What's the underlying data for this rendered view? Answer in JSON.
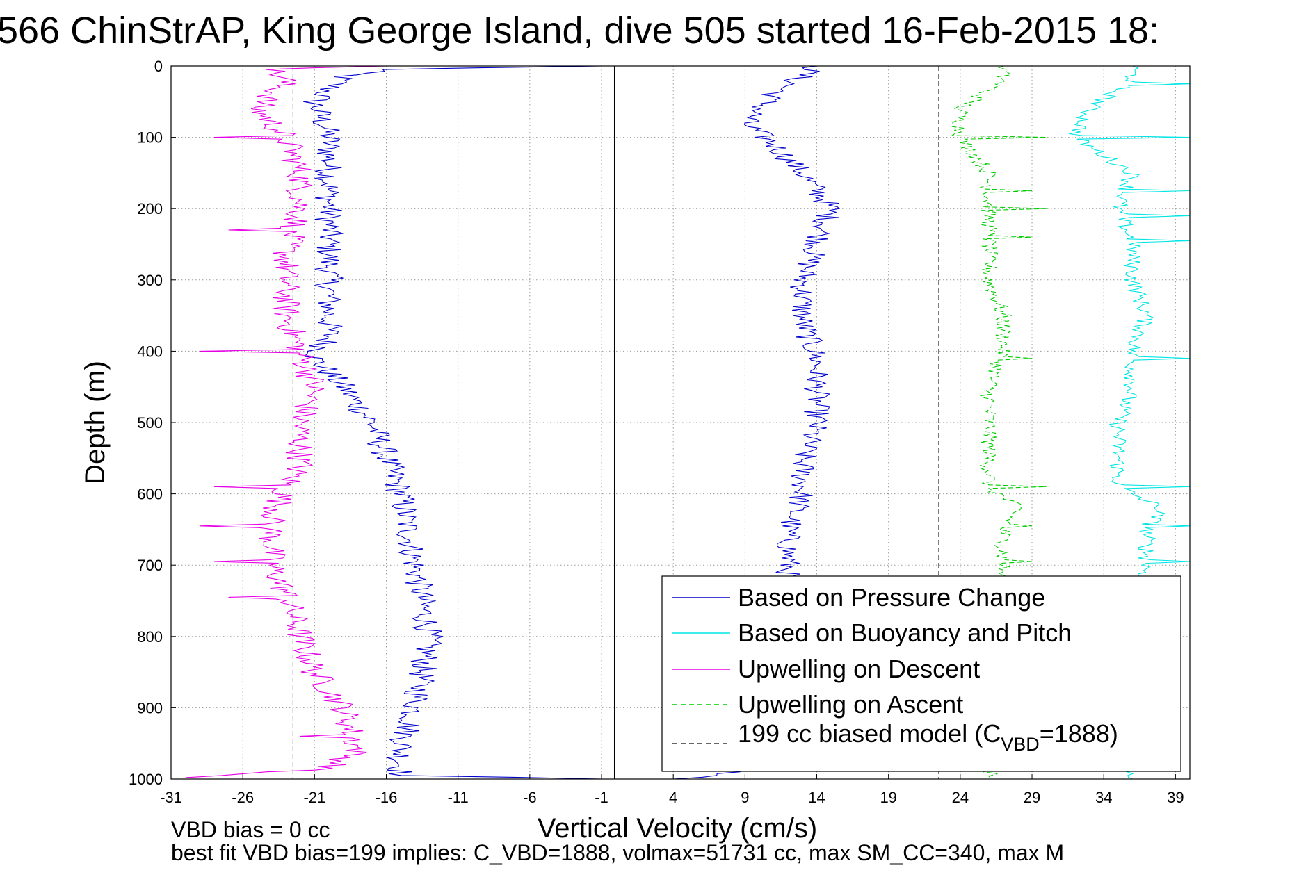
{
  "chart_data": {
    "type": "line",
    "title": "566 ChinStrAP, King George Island, dive 505 started 16-Feb-2015 18:",
    "xlabel": "Vertical Velocity (cm/s)",
    "ylabel": "Depth (m)",
    "xlim": [
      -31,
      40
    ],
    "ylim": [
      0,
      1000
    ],
    "y_reversed": true,
    "grid": true,
    "x_ticks": [
      "-31",
      "-26",
      "-21",
      "-16",
      "-11",
      "-6",
      "-1",
      "4",
      "9",
      "14",
      "19",
      "24",
      "29",
      "34",
      "39"
    ],
    "y_ticks": [
      "0",
      "100",
      "200",
      "300",
      "400",
      "500",
      "600",
      "700",
      "800",
      "900",
      "1000"
    ],
    "legend_position": "bottom-right",
    "legend": [
      {
        "label": "Based on Pressure Change",
        "color": "#0000cc",
        "style": "solid"
      },
      {
        "label": "Based on Buoyancy and Pitch",
        "color": "#00e5e5",
        "style": "solid"
      },
      {
        "label": "Upwelling on Descent",
        "color": "#e600e6",
        "style": "solid"
      },
      {
        "label": "Upwelling on Ascent",
        "color": "#00cc00",
        "style": "dashed"
      },
      {
        "label_main": "199 cc biased model (C",
        "label_sub": "VBD",
        "label_tail": "=1888)",
        "color": "#333333",
        "style": "dashed"
      }
    ],
    "series": [
      {
        "name": "Based on Pressure Change (descent)",
        "color": "#0000cc",
        "style": "solid",
        "points": [
          [
            -1,
            0
          ],
          [
            -2,
            2
          ],
          [
            -16,
            3
          ],
          [
            -19,
            15
          ],
          [
            -21,
            50
          ],
          [
            -20,
            100
          ],
          [
            -20,
            200
          ],
          [
            -20,
            300
          ],
          [
            -20,
            380
          ],
          [
            -21,
            410
          ],
          [
            -19,
            450
          ],
          [
            -17,
            500
          ],
          [
            -15,
            600
          ],
          [
            -14,
            700
          ],
          [
            -13,
            800
          ],
          [
            -14,
            900
          ],
          [
            -15,
            960
          ],
          [
            -15,
            995
          ],
          [
            -1,
            1000
          ]
        ],
        "noise": 1.0
      },
      {
        "name": "Based on Pressure Change (ascent)",
        "color": "#0000cc",
        "style": "solid",
        "points": [
          [
            14,
            0
          ],
          [
            11,
            40
          ],
          [
            9,
            80
          ],
          [
            11,
            110
          ],
          [
            13,
            150
          ],
          [
            15,
            200
          ],
          [
            14,
            250
          ],
          [
            13,
            300
          ],
          [
            13,
            360
          ],
          [
            14,
            410
          ],
          [
            14,
            450
          ],
          [
            14,
            500
          ],
          [
            13,
            550
          ],
          [
            13,
            600
          ],
          [
            12,
            650
          ],
          [
            12,
            700
          ],
          [
            12,
            800
          ],
          [
            12,
            900
          ],
          [
            12,
            960
          ],
          [
            9,
            990
          ],
          [
            4,
            1000
          ]
        ],
        "noise": 0.9
      },
      {
        "name": "Upwelling on Descent",
        "color": "#e600e6",
        "style": "solid",
        "points": [
          [
            -16,
            0
          ],
          [
            -24,
            5
          ],
          [
            -23,
            20
          ],
          [
            -25,
            60
          ],
          [
            -23,
            100
          ],
          [
            -22,
            150
          ],
          [
            -22,
            200
          ],
          [
            -23,
            260
          ],
          [
            -23,
            300
          ],
          [
            -23,
            350
          ],
          [
            -22,
            400
          ],
          [
            -21,
            450
          ],
          [
            -22,
            500
          ],
          [
            -22,
            560
          ],
          [
            -23,
            590
          ],
          [
            -24,
            640
          ],
          [
            -24,
            700
          ],
          [
            -23,
            740
          ],
          [
            -22,
            800
          ],
          [
            -21,
            850
          ],
          [
            -19,
            900
          ],
          [
            -18,
            960
          ],
          [
            -20,
            985
          ],
          [
            -30,
            998
          ]
        ],
        "noise": 1.0,
        "spikes": [
          [
            -28,
            100
          ],
          [
            -27,
            230
          ],
          [
            -29,
            400
          ],
          [
            -28,
            590
          ],
          [
            -29,
            645
          ],
          [
            -28,
            695
          ],
          [
            -27,
            745
          ],
          [
            -22,
            940
          ]
        ]
      },
      {
        "name": "Upwelling on Ascent",
        "color": "#00cc00",
        "style": "dashed",
        "points": [
          [
            27,
            0
          ],
          [
            27,
            20
          ],
          [
            24,
            60
          ],
          [
            24,
            100
          ],
          [
            26,
            150
          ],
          [
            26,
            200
          ],
          [
            26,
            250
          ],
          [
            26,
            300
          ],
          [
            27,
            350
          ],
          [
            27,
            400
          ],
          [
            26,
            450
          ],
          [
            26,
            500
          ],
          [
            26,
            550
          ],
          [
            26,
            590
          ],
          [
            28,
            620
          ],
          [
            27,
            650
          ],
          [
            27,
            700
          ],
          [
            26,
            800
          ],
          [
            26,
            900
          ],
          [
            26,
            1000
          ]
        ],
        "noise": 0.6,
        "spikes": [
          [
            30,
            100
          ],
          [
            29,
            175
          ],
          [
            30,
            200
          ],
          [
            29,
            240
          ],
          [
            29,
            410
          ],
          [
            30,
            590
          ],
          [
            29,
            645
          ],
          [
            29,
            695
          ]
        ]
      },
      {
        "name": "Based on Buoyancy and Pitch",
        "color": "#00e5e5",
        "style": "solid",
        "points": [
          [
            36,
            0
          ],
          [
            36,
            20
          ],
          [
            33,
            60
          ],
          [
            32,
            100
          ],
          [
            36,
            150
          ],
          [
            35,
            200
          ],
          [
            36,
            250
          ],
          [
            36,
            300
          ],
          [
            37,
            350
          ],
          [
            36,
            400
          ],
          [
            36,
            450
          ],
          [
            35,
            500
          ],
          [
            35,
            550
          ],
          [
            35,
            590
          ],
          [
            38,
            620
          ],
          [
            37,
            650
          ],
          [
            37,
            700
          ],
          [
            36,
            800
          ],
          [
            36,
            900
          ],
          [
            36,
            1000
          ]
        ],
        "noise": 0.6,
        "spikes": [
          [
            40,
            0
          ],
          [
            40,
            25
          ],
          [
            40,
            100
          ],
          [
            40,
            175
          ],
          [
            40,
            210
          ],
          [
            40,
            245
          ],
          [
            40,
            410
          ],
          [
            40,
            590
          ],
          [
            40,
            645
          ],
          [
            40,
            695
          ]
        ]
      },
      {
        "name": "199 cc biased model (descent)",
        "color": "#333333",
        "style": "dashed",
        "points": [
          [
            -22.5,
            0
          ],
          [
            -22.5,
            1000
          ]
        ]
      },
      {
        "name": "199 cc biased model (ascent)",
        "color": "#333333",
        "style": "dashed",
        "points": [
          [
            22.5,
            0
          ],
          [
            22.5,
            1000
          ]
        ]
      }
    ],
    "zero_lines": [
      [
        -0.1,
        0
      ],
      [
        -0.1,
        1000
      ]
    ]
  },
  "footer": {
    "line1": "VBD bias = 0 cc",
    "line2": "best fit VBD bias=199 implies: C_VBD=1888, volmax=51731 cc, max SM_CC=340, max M"
  }
}
